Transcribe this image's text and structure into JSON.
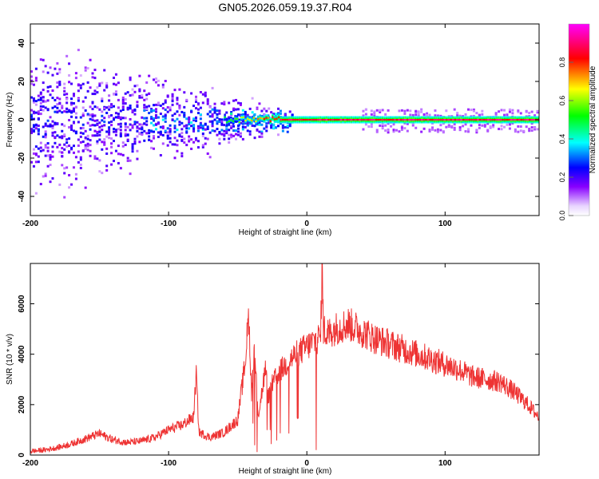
{
  "title": "GN05.2026.059.19.37.R04",
  "chart_data": [
    {
      "type": "heatmap",
      "name": "spectrogram",
      "xlabel": "Height of straight line (km)",
      "ylabel": "Frequency (Hz)",
      "xlim": [
        -200,
        168
      ],
      "ylim": [
        -50,
        50
      ],
      "xticks": [
        -200,
        -100,
        0,
        100
      ],
      "yticks": [
        -40,
        -20,
        0,
        20,
        40
      ],
      "colorbar": {
        "label": "Normalized spectral amplitude",
        "range": [
          0.0,
          1.0
        ],
        "ticks": [
          "0.0",
          "0.2",
          "0.4",
          "0.6",
          "0.8"
        ],
        "colormap": [
          "#ffffff",
          "#8800ff",
          "#0000ff",
          "#00ffff",
          "#00ff00",
          "#ffff00",
          "#ff0000",
          "#ff00ff"
        ]
      },
      "features": {
        "carrier_frequency_hz": 0,
        "carrier_start_km": -60,
        "carrier_end_km": 168,
        "carrier_amplitude": 0.95,
        "noise_region_km": [
          -200,
          -30
        ],
        "noise_spread_hz": 50
      }
    },
    {
      "type": "line",
      "name": "snr",
      "xlabel": "Height of straight line (km)",
      "ylabel": "SNR (10 * v/v)",
      "xlim": [
        -200,
        168
      ],
      "ylim": [
        0,
        7600
      ],
      "xticks": [
        -200,
        -100,
        0,
        100
      ],
      "yticks": [
        0,
        2000,
        4000,
        6000
      ],
      "color": "#ee3333",
      "series": [
        {
          "name": "SNR",
          "x": [
            -200,
            -190,
            -180,
            -170,
            -160,
            -150,
            -140,
            -130,
            -120,
            -110,
            -100,
            -90,
            -82,
            -80,
            -78,
            -70,
            -60,
            -50,
            -45,
            -42,
            -40,
            -38,
            -35,
            -30,
            -28,
            -25,
            -20,
            -15,
            -10,
            -5,
            0,
            5,
            10,
            11,
            12,
            15,
            20,
            25,
            30,
            35,
            40,
            50,
            60,
            70,
            80,
            90,
            100,
            110,
            120,
            130,
            140,
            150,
            160,
            168
          ],
          "y": [
            150,
            200,
            300,
            450,
            650,
            850,
            600,
            500,
            550,
            700,
            1000,
            1200,
            1500,
            3200,
            900,
            700,
            900,
            1400,
            3500,
            5500,
            2500,
            4200,
            1600,
            3400,
            2300,
            2800,
            3300,
            3600,
            3900,
            4100,
            4300,
            4500,
            4700,
            7600,
            5000,
            4800,
            5000,
            5100,
            5200,
            5050,
            4900,
            4600,
            4400,
            4200,
            4000,
            3800,
            3600,
            3400,
            3100,
            3000,
            2900,
            2500,
            2000,
            1500
          ]
        }
      ]
    }
  ]
}
